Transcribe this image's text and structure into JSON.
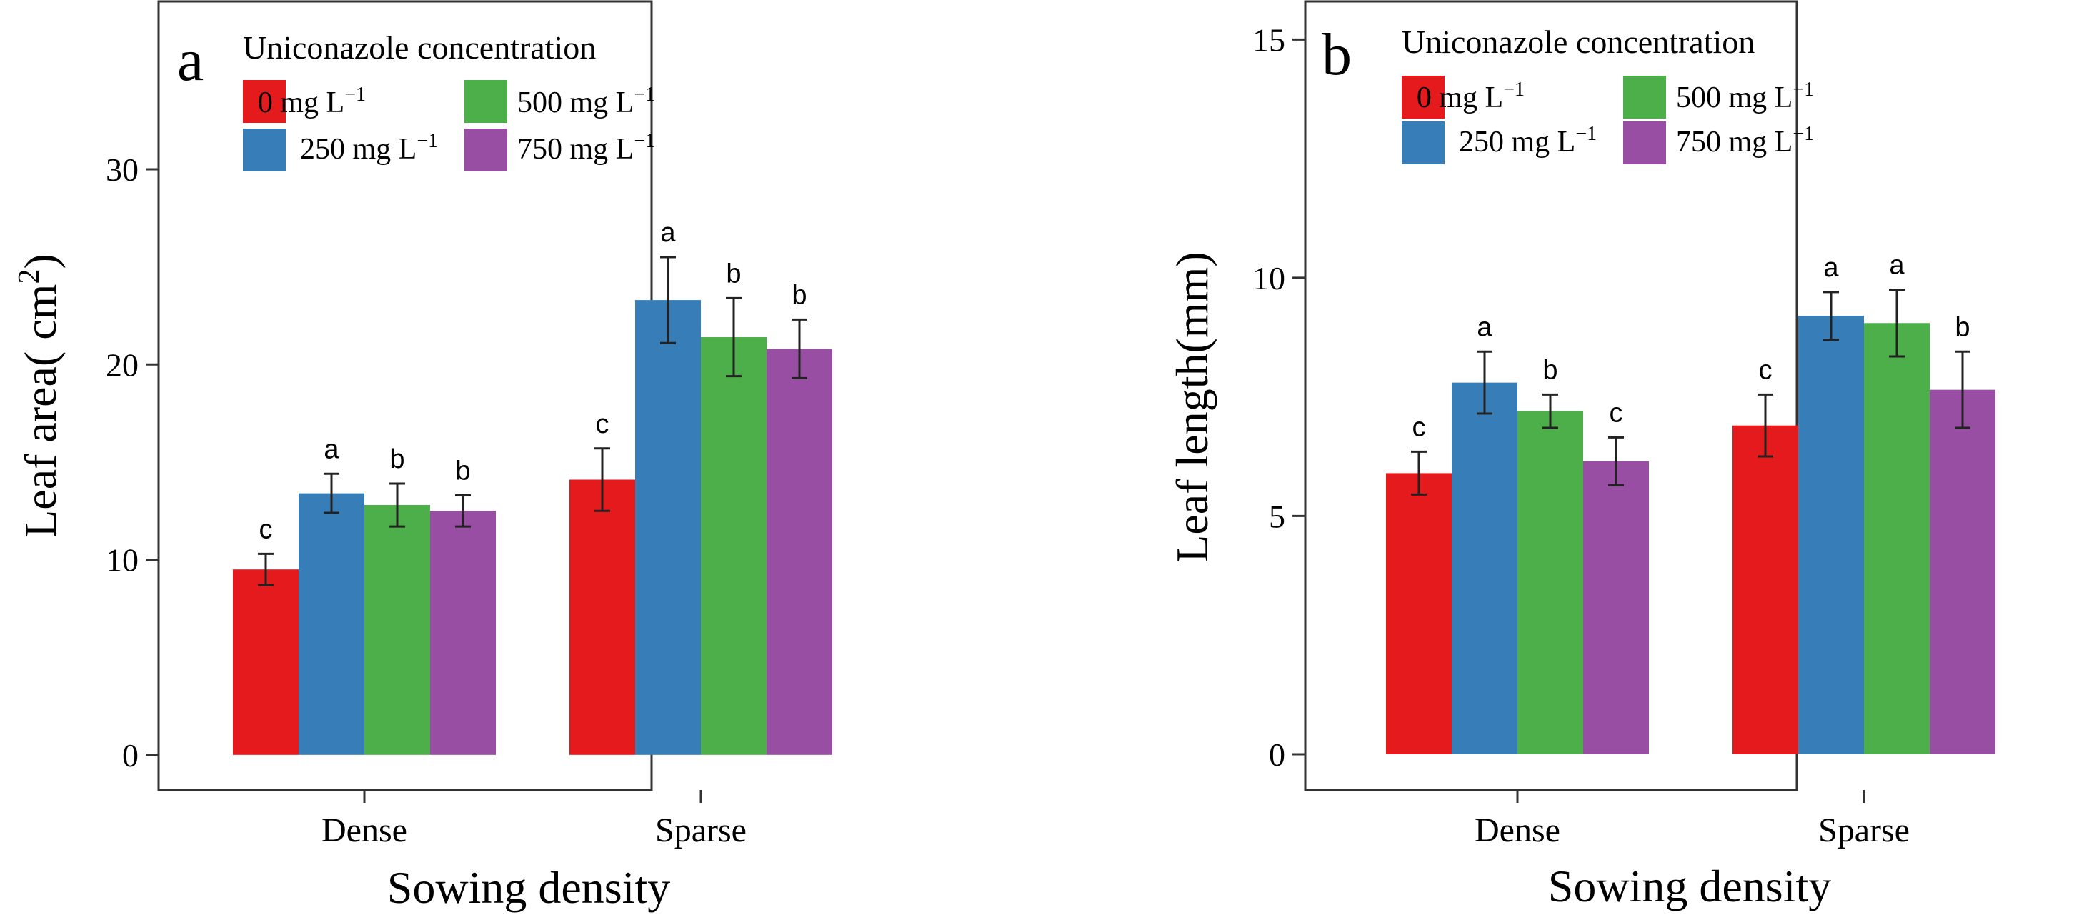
{
  "panels": [
    {
      "label": "a",
      "legend": {
        "title": "Uniconazole concentration",
        "entries": [
          {
            "value": "0",
            "unit": "mg L",
            "exp": "−1"
          },
          {
            "value": "500",
            "unit": "mg L",
            "exp": "−1"
          },
          {
            "value": "250",
            "unit": "mg L",
            "exp": "−1"
          },
          {
            "value": "750",
            "unit": "mg L",
            "exp": "−1"
          }
        ]
      },
      "ylabel": {
        "text": "Leaf area( cm",
        "sup": "2",
        "close": ")"
      },
      "xlabel": "Sowing density"
    },
    {
      "label": "b",
      "legend": {
        "title": "Uniconazole concentration",
        "entries": [
          {
            "value": "0",
            "unit": "mg L",
            "exp": "−1"
          },
          {
            "value": "500",
            "unit": "mg L",
            "exp": "−1"
          },
          {
            "value": "250",
            "unit": "mg L",
            "exp": "−1"
          },
          {
            "value": "750",
            "unit": "mg L",
            "exp": "−1"
          }
        ]
      },
      "ylabel": {
        "text": "Leaf length(mm)",
        "sup": "",
        "close": ""
      },
      "xlabel": "Sowing density"
    }
  ],
  "chart_data": [
    {
      "type": "bar",
      "panel": "a",
      "title": "",
      "xlabel": "Sowing density",
      "ylabel": "Leaf area( cm2)",
      "categories": [
        "Dense",
        "Sparse"
      ],
      "ylim": [
        -1.8,
        38.6
      ],
      "yticks": [
        0,
        10,
        20,
        30
      ],
      "grid": false,
      "legend_position": "top-left",
      "series": [
        {
          "name": "0 mg L−1",
          "color": "#e41a1c",
          "values": [
            9.5,
            14.1
          ],
          "errors": [
            0.8,
            1.6
          ],
          "letters": [
            "c",
            "c"
          ]
        },
        {
          "name": "250 mg L−1",
          "color": "#377eb8",
          "values": [
            13.4,
            23.3
          ],
          "errors": [
            1.0,
            2.2
          ],
          "letters": [
            "a",
            "a"
          ]
        },
        {
          "name": "500 mg L−1",
          "color": "#4daf4a",
          "values": [
            12.8,
            21.4
          ],
          "errors": [
            1.1,
            2.0
          ],
          "letters": [
            "b",
            "b"
          ]
        },
        {
          "name": "750 mg L−1",
          "color": "#984ea3",
          "values": [
            12.5,
            20.8
          ],
          "errors": [
            0.8,
            1.5
          ],
          "letters": [
            "b",
            "b"
          ]
        }
      ]
    },
    {
      "type": "bar",
      "panel": "b",
      "title": "",
      "xlabel": "Sowing density",
      "ylabel": "Leaf length(mm)",
      "categories": [
        "Dense",
        "Sparse"
      ],
      "ylim": [
        -0.75,
        15.8
      ],
      "yticks": [
        0,
        5,
        10,
        15
      ],
      "grid": false,
      "legend_position": "top-left",
      "series": [
        {
          "name": "0 mg L−1",
          "color": "#e41a1c",
          "values": [
            5.9,
            6.9
          ],
          "errors": [
            0.45,
            0.65
          ],
          "letters": [
            "c",
            "c"
          ]
        },
        {
          "name": "250 mg L−1",
          "color": "#377eb8",
          "values": [
            7.8,
            9.2
          ],
          "errors": [
            0.65,
            0.5
          ],
          "letters": [
            "a",
            "a"
          ]
        },
        {
          "name": "500 mg L−1",
          "color": "#4daf4a",
          "values": [
            7.2,
            9.05
          ],
          "errors": [
            0.35,
            0.7
          ],
          "letters": [
            "b",
            "a"
          ]
        },
        {
          "name": "750 mg L−1",
          "color": "#984ea3",
          "values": [
            6.15,
            7.65
          ],
          "errors": [
            0.5,
            0.8
          ],
          "letters": [
            "c",
            "b"
          ]
        }
      ]
    }
  ]
}
